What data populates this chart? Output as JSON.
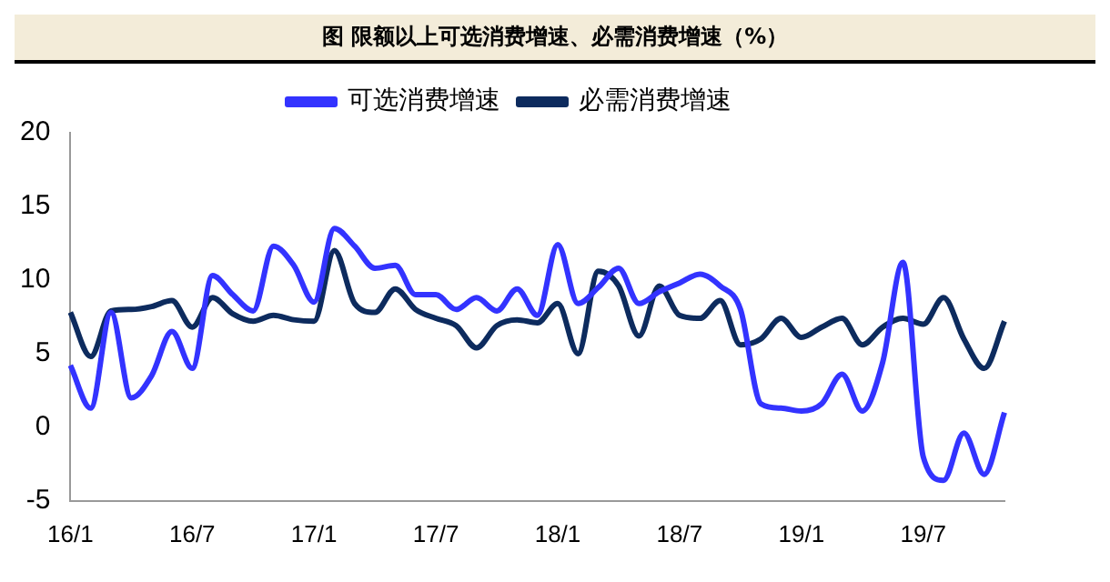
{
  "chart_data": {
    "type": "line",
    "title": "图  限额以上可选消费增速、必需消费增速（%）",
    "categories": [
      "16/1",
      null,
      null,
      null,
      null,
      null,
      "16/7",
      null,
      null,
      null,
      null,
      null,
      "17/1",
      null,
      null,
      null,
      null,
      null,
      "17/7",
      null,
      null,
      null,
      null,
      null,
      "18/1",
      null,
      null,
      null,
      null,
      null,
      "18/7",
      null,
      null,
      null,
      null,
      null,
      "19/1",
      null,
      null,
      null,
      null,
      null,
      "19/7",
      null,
      null,
      null,
      null
    ],
    "series": [
      {
        "name": "可选消费增速",
        "color": "#3333ff",
        "values": [
          4.2,
          1.3,
          7.8,
          2.0,
          3.5,
          6.5,
          4.0,
          10.3,
          9.0,
          7.9,
          12.3,
          11.0,
          8.5,
          13.5,
          12.3,
          10.8,
          11.0,
          9.0,
          9.0,
          8.0,
          8.8,
          7.9,
          9.4,
          7.6,
          12.4,
          8.4,
          9.5,
          10.8,
          8.4,
          9.2,
          9.8,
          10.4,
          9.6,
          8.0,
          1.6,
          1.3,
          1.1,
          1.6,
          3.6,
          1.1,
          4.4,
          11.2,
          -2.0,
          -3.6,
          -0.4,
          -3.2,
          1.0
        ]
      },
      {
        "name": "必需消费增速",
        "color": "#0d2b5e",
        "values": [
          7.8,
          4.8,
          7.9,
          8.0,
          8.2,
          8.6,
          6.8,
          8.8,
          7.7,
          7.2,
          7.6,
          7.3,
          7.2,
          12.0,
          8.4,
          7.8,
          9.4,
          8.0,
          7.4,
          6.9,
          5.4,
          6.9,
          7.3,
          7.1,
          8.4,
          5.0,
          10.6,
          9.6,
          6.2,
          9.6,
          7.6,
          7.4,
          8.6,
          5.6,
          6.0,
          7.4,
          6.1,
          6.8,
          7.4,
          5.6,
          6.8,
          7.4,
          7.0,
          8.8,
          6.0,
          4.0,
          7.2
        ]
      }
    ],
    "ylim": [
      -5,
      20
    ],
    "yticks": [
      -5,
      0,
      5,
      10,
      15,
      20
    ],
    "grid": false,
    "legend": "top",
    "marker": "none",
    "line_style": "solid"
  }
}
